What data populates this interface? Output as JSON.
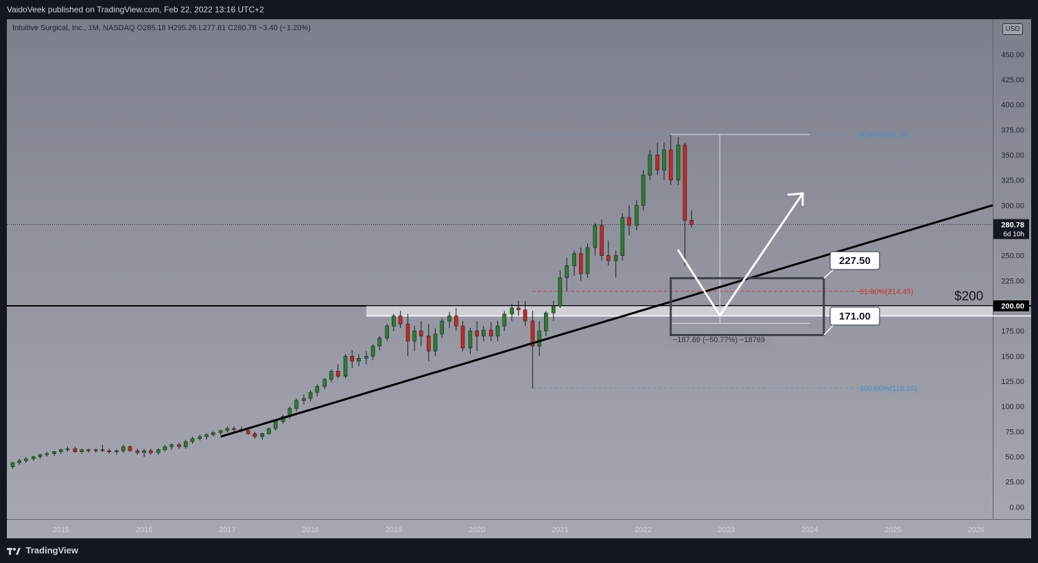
{
  "header": {
    "published": "VaidoVeek published on TradingView.com, Feb 22, 2022 13:16 UTC+2",
    "legend": "Intuitive Surgical, Inc., 1M, NASDAQ  O285.18  H295.26  L277.81  C280.78  −3.40 (−1.20%)",
    "currency": "USD"
  },
  "footer": {
    "brand": "TradingView"
  },
  "price_label": {
    "value": "280.78",
    "countdown": "6d 10h"
  },
  "level_label": "200.00",
  "annotations": {
    "big_label": "$200",
    "box_top_label": "227.50",
    "box_bottom_label": "171.00",
    "fib_0": "0.00%(370.34)",
    "fib_618": "61.80%(214.45)",
    "fib_100": "100.00%(118.10)",
    "measure": "−187.69 (−50.77%) −18769"
  },
  "colors": {
    "up": "#2e7d32",
    "down": "#c62828",
    "fib_blue": "#4a90c8",
    "fib_red": "#d32f2f"
  },
  "chart_data": {
    "type": "candlestick",
    "ylim": [
      -12,
      485
    ],
    "y_ticks": [
      0,
      25,
      50,
      75,
      100,
      125,
      150,
      175,
      200,
      225,
      250,
      275,
      300,
      325,
      350,
      375,
      400,
      425,
      450
    ],
    "y_tick_labels": [
      "0.00",
      "25.00",
      "50.00",
      "75.00",
      "100.00",
      "125.00",
      "150.00",
      "175.00",
      "",
      "225.00",
      "250.00",
      "",
      "300.00",
      "325.00",
      "350.00",
      "375.00",
      "400.00",
      "425.00",
      "450.00"
    ],
    "x_labels": [
      "2015",
      "2016",
      "2017",
      "2018",
      "2019",
      "2020",
      "2021",
      "2022",
      "2023",
      "2024",
      "2025",
      "2026"
    ],
    "x_label_years": [
      2015,
      2016,
      2017,
      2018,
      2019,
      2020,
      2021,
      2022,
      2023,
      2024,
      2025,
      2026
    ],
    "x_start": 2014.35,
    "x_end": 2026.2,
    "ohlc": [
      [
        2014.42,
        40,
        45,
        38,
        44
      ],
      [
        2014.5,
        44,
        48,
        42,
        46
      ],
      [
        2014.58,
        46,
        50,
        44,
        48
      ],
      [
        2014.67,
        48,
        51,
        46,
        50
      ],
      [
        2014.75,
        50,
        53,
        48,
        52
      ],
      [
        2014.83,
        52,
        55,
        50,
        53
      ],
      [
        2014.92,
        53,
        56,
        51,
        55
      ],
      [
        2015.0,
        55,
        58,
        53,
        57
      ],
      [
        2015.08,
        57,
        60,
        55,
        58
      ],
      [
        2015.17,
        58,
        60,
        54,
        55
      ],
      [
        2015.25,
        55,
        58,
        53,
        57
      ],
      [
        2015.33,
        57,
        58,
        54,
        56
      ],
      [
        2015.42,
        56,
        58,
        54,
        57
      ],
      [
        2015.5,
        57,
        62,
        55,
        56
      ],
      [
        2015.58,
        56,
        58,
        53,
        55
      ],
      [
        2015.67,
        55,
        57,
        52,
        56
      ],
      [
        2015.75,
        56,
        62,
        54,
        60
      ],
      [
        2015.83,
        60,
        61,
        55,
        56
      ],
      [
        2015.92,
        56,
        58,
        52,
        54
      ],
      [
        2016.0,
        54,
        58,
        50,
        56
      ],
      [
        2016.08,
        56,
        58,
        52,
        54
      ],
      [
        2016.17,
        54,
        58,
        52,
        57
      ],
      [
        2016.25,
        57,
        62,
        55,
        60
      ],
      [
        2016.33,
        60,
        63,
        57,
        62
      ],
      [
        2016.42,
        62,
        64,
        58,
        60
      ],
      [
        2016.5,
        60,
        67,
        58,
        65
      ],
      [
        2016.58,
        65,
        70,
        63,
        68
      ],
      [
        2016.67,
        68,
        72,
        66,
        70
      ],
      [
        2016.75,
        70,
        73,
        67,
        72
      ],
      [
        2016.83,
        72,
        75,
        70,
        74
      ],
      [
        2016.92,
        74,
        77,
        72,
        76
      ],
      [
        2017.0,
        76,
        80,
        74,
        78
      ],
      [
        2017.08,
        78,
        80,
        75,
        77
      ],
      [
        2017.17,
        77,
        80,
        74,
        76
      ],
      [
        2017.25,
        76,
        78,
        72,
        73
      ],
      [
        2017.33,
        73,
        75,
        68,
        70
      ],
      [
        2017.42,
        70,
        74,
        67,
        73
      ],
      [
        2017.5,
        73,
        79,
        72,
        78
      ],
      [
        2017.58,
        78,
        86,
        76,
        85
      ],
      [
        2017.67,
        85,
        92,
        83,
        90
      ],
      [
        2017.75,
        90,
        100,
        88,
        98
      ],
      [
        2017.83,
        98,
        108,
        95,
        106
      ],
      [
        2017.92,
        106,
        112,
        102,
        108
      ],
      [
        2018.0,
        108,
        116,
        105,
        114
      ],
      [
        2018.08,
        114,
        122,
        110,
        120
      ],
      [
        2018.17,
        120,
        128,
        117,
        127
      ],
      [
        2018.25,
        127,
        137,
        124,
        135
      ],
      [
        2018.33,
        135,
        142,
        128,
        130
      ],
      [
        2018.42,
        130,
        152,
        128,
        150
      ],
      [
        2018.5,
        150,
        156,
        138,
        145
      ],
      [
        2018.58,
        145,
        152,
        140,
        148
      ],
      [
        2018.67,
        148,
        155,
        142,
        150
      ],
      [
        2018.75,
        150,
        162,
        146,
        160
      ],
      [
        2018.83,
        160,
        170,
        156,
        168
      ],
      [
        2018.92,
        168,
        182,
        165,
        180
      ],
      [
        2019.0,
        180,
        192,
        175,
        190
      ],
      [
        2019.08,
        190,
        195,
        178,
        182
      ],
      [
        2019.17,
        182,
        192,
        150,
        165
      ],
      [
        2019.25,
        165,
        180,
        155,
        175
      ],
      [
        2019.33,
        175,
        185,
        160,
        170
      ],
      [
        2019.42,
        170,
        182,
        145,
        155
      ],
      [
        2019.5,
        155,
        178,
        150,
        172
      ],
      [
        2019.58,
        172,
        188,
        168,
        185
      ],
      [
        2019.67,
        185,
        194,
        178,
        190
      ],
      [
        2019.75,
        190,
        198,
        175,
        180
      ],
      [
        2019.83,
        180,
        185,
        155,
        158
      ],
      [
        2019.92,
        158,
        178,
        152,
        175
      ],
      [
        2020.0,
        175,
        185,
        155,
        170
      ],
      [
        2020.08,
        170,
        180,
        165,
        176
      ],
      [
        2020.17,
        176,
        184,
        165,
        170
      ],
      [
        2020.25,
        170,
        185,
        165,
        180
      ],
      [
        2020.33,
        180,
        195,
        175,
        192
      ],
      [
        2020.42,
        192,
        202,
        185,
        198
      ],
      [
        2020.5,
        198,
        205,
        190,
        196
      ],
      [
        2020.58,
        196,
        205,
        180,
        185
      ],
      [
        2020.67,
        185,
        195,
        118,
        160
      ],
      [
        2020.75,
        160,
        185,
        150,
        175
      ],
      [
        2020.83,
        175,
        195,
        170,
        193
      ],
      [
        2020.92,
        193,
        205,
        185,
        200
      ],
      [
        2021.0,
        200,
        235,
        198,
        228
      ],
      [
        2021.08,
        228,
        248,
        215,
        240
      ],
      [
        2021.17,
        240,
        255,
        230,
        252
      ],
      [
        2021.25,
        252,
        258,
        225,
        232
      ],
      [
        2021.33,
        232,
        262,
        228,
        258
      ],
      [
        2021.42,
        258,
        282,
        250,
        280
      ],
      [
        2021.5,
        280,
        286,
        245,
        250
      ],
      [
        2021.58,
        250,
        265,
        240,
        245
      ],
      [
        2021.67,
        245,
        255,
        228,
        250
      ],
      [
        2021.75,
        250,
        292,
        245,
        288
      ],
      [
        2021.83,
        288,
        300,
        270,
        280
      ],
      [
        2021.92,
        280,
        305,
        275,
        300
      ],
      [
        2022.0,
        300,
        335,
        295,
        330
      ],
      [
        2022.08,
        330,
        355,
        325,
        350
      ],
      [
        2022.17,
        350,
        362,
        330,
        335
      ],
      [
        2022.25,
        335,
        362,
        325,
        355
      ],
      [
        2022.33,
        355,
        370,
        320,
        325
      ],
      [
        2022.42,
        325,
        368,
        320,
        360
      ],
      [
        2022.5,
        360,
        362,
        240,
        285
      ],
      [
        2022.58,
        285,
        295,
        277.81,
        280.78
      ]
    ],
    "trendline": {
      "x1": 2016.92,
      "y1": 70,
      "x2": 2026.2,
      "y2": 300
    },
    "horizontal_level": 200,
    "zone": {
      "y_top": 200,
      "y_bottom": 190
    }
  }
}
